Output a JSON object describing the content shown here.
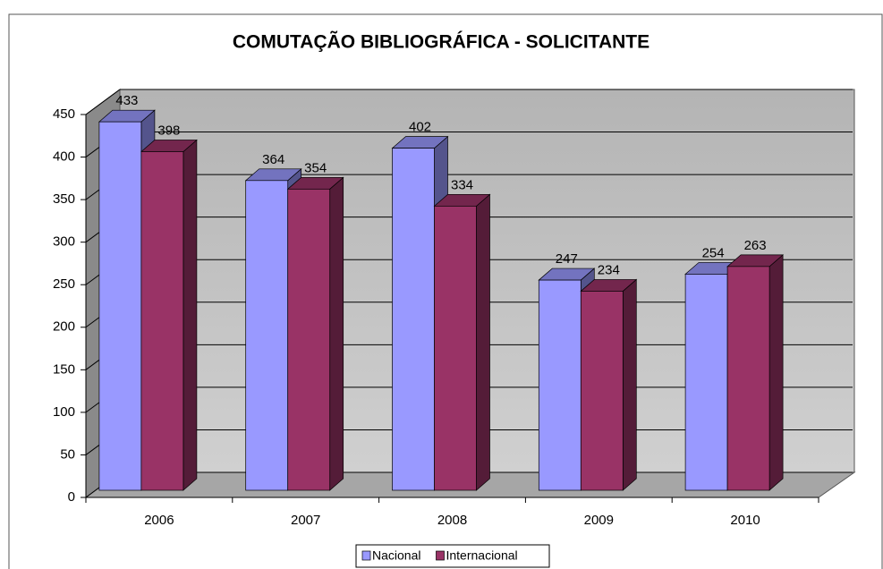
{
  "chart_data": {
    "type": "bar3d",
    "title": "COMUTAÇÃO BIBLIOGRÁFICA - SOLICITANTE",
    "categories": [
      "2006",
      "2007",
      "2008",
      "2009",
      "2010"
    ],
    "series": [
      {
        "name": "Nacional",
        "color": "#9999ff",
        "values": [
          433,
          364,
          402,
          247,
          254
        ]
      },
      {
        "name": "Internacional",
        "color": "#993366",
        "values": [
          398,
          354,
          334,
          234,
          263
        ]
      }
    ],
    "ylim": [
      0,
      450
    ],
    "yticks": [
      0,
      50,
      100,
      150,
      200,
      250,
      300,
      350,
      400,
      450
    ],
    "grid": true,
    "legend": "bottom"
  }
}
